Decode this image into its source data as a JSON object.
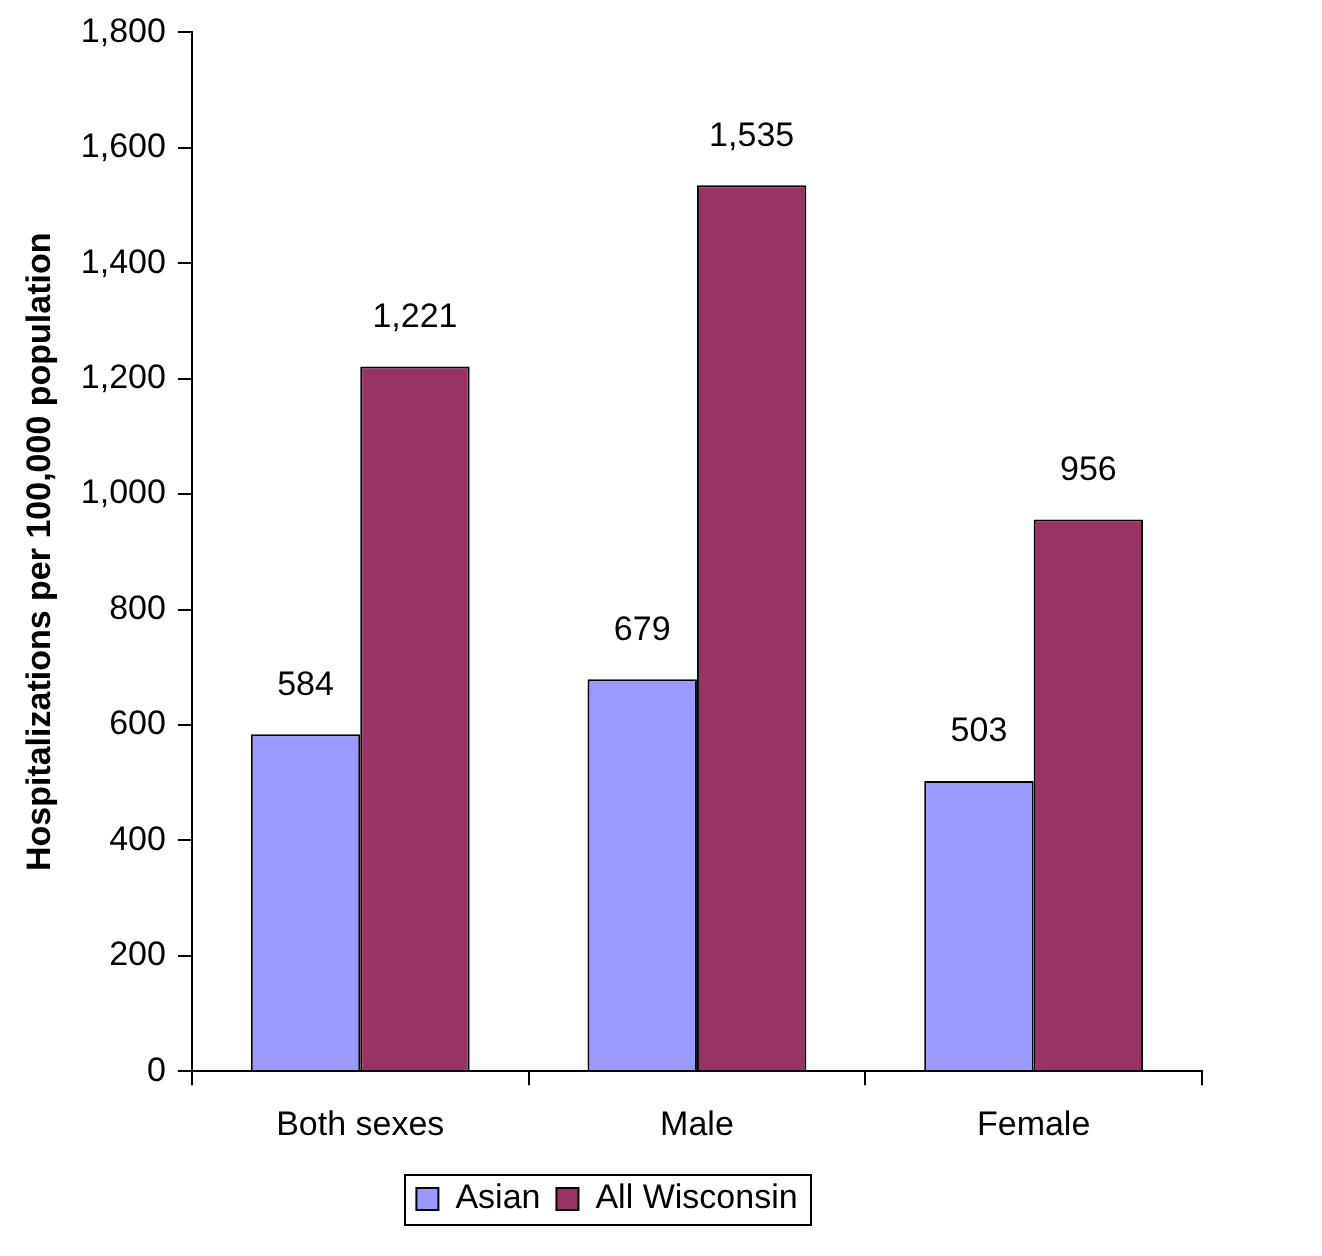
{
  "chart_data": {
    "type": "bar",
    "ylabel": "Hospitalizations per 100,000 population",
    "categories": [
      "Both sexes",
      "Male",
      "Female"
    ],
    "series": [
      {
        "name": "Asian",
        "color": "#9999ff",
        "values": [
          584,
          679,
          503
        ],
        "value_labels": [
          "584",
          "679",
          "503"
        ]
      },
      {
        "name": "All Wisconsin",
        "color": "#993366",
        "values": [
          1221,
          1535,
          956
        ],
        "value_labels": [
          "1,221",
          "1,535",
          "956"
        ]
      }
    ],
    "ylim": [
      0,
      1800
    ],
    "yticks": [
      0,
      200,
      400,
      600,
      800,
      {
        "value": 1000,
        "label": "1,000"
      },
      {
        "value": 1200,
        "label": "1,200"
      },
      {
        "value": 1400,
        "label": "1,400"
      },
      {
        "value": 1600,
        "label": "1,600"
      },
      {
        "value": 1800,
        "label": "1,800"
      }
    ],
    "grid": false,
    "legend": "bottom"
  }
}
